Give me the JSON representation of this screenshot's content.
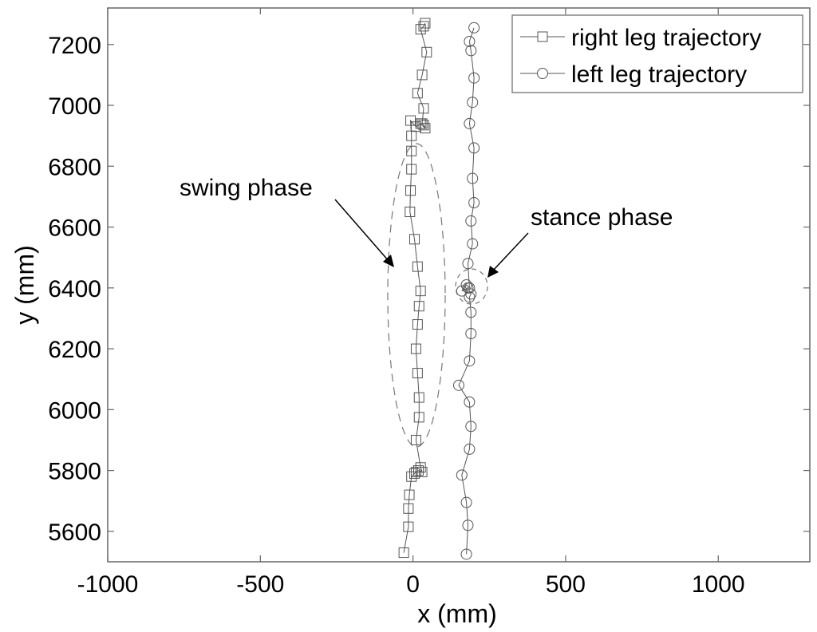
{
  "chart_data": {
    "type": "line",
    "title": "",
    "xlabel": "x (mm)",
    "ylabel": "y (mm)",
    "xlim": [
      -1000,
      1300
    ],
    "ylim": [
      5500,
      7320
    ],
    "xticks": [
      -1000,
      -500,
      0,
      500,
      1000
    ],
    "xtick_labels": [
      "-1000",
      "-500",
      "0",
      "500",
      "1000"
    ],
    "yticks": [
      5600,
      5800,
      6000,
      6200,
      6400,
      6600,
      6800,
      7000,
      7200
    ],
    "ytick_labels": [
      "5600",
      "5800",
      "6000",
      "6200",
      "6400",
      "6600",
      "6800",
      "7000",
      "7200"
    ],
    "grid": false,
    "legend_position": "top-right",
    "series": [
      {
        "name": "right leg trajectory",
        "marker": "square",
        "x": [
          -30,
          -15,
          -15,
          -12,
          -5,
          5,
          10,
          18,
          30,
          25,
          10,
          20,
          20,
          15,
          10,
          15,
          20,
          25,
          15,
          5,
          -10,
          -8,
          -5,
          -5,
          -5,
          -8,
          10,
          25,
          40,
          35,
          30,
          35,
          15,
          30,
          45,
          25,
          35,
          40
        ],
        "y": [
          5530,
          5615,
          5675,
          5720,
          5780,
          5790,
          5795,
          5800,
          5795,
          5810,
          5900,
          5975,
          6040,
          6120,
          6200,
          6280,
          6340,
          6390,
          6470,
          6560,
          6650,
          6720,
          6790,
          6850,
          6900,
          6950,
          6930,
          6940,
          6925,
          6935,
          6940,
          6990,
          7040,
          7100,
          7175,
          7250,
          7260,
          7270
        ],
        "color": "#555555"
      },
      {
        "name": "left leg trajectory",
        "marker": "circle",
        "x": [
          175,
          180,
          175,
          160,
          185,
          190,
          185,
          150,
          185,
          190,
          190,
          185,
          190,
          180,
          160,
          175,
          185,
          180,
          195,
          190,
          200,
          195,
          200,
          185,
          195,
          200,
          190,
          185,
          200
        ],
        "y": [
          5525,
          5620,
          5695,
          5785,
          5870,
          5945,
          6025,
          6080,
          6160,
          6250,
          6320,
          6370,
          6380,
          6400,
          6390,
          6410,
          6400,
          6480,
          6545,
          6620,
          6680,
          6760,
          6860,
          6940,
          7010,
          7090,
          7180,
          7210,
          7255
        ],
        "color": "#555555"
      }
    ],
    "annotations": [
      "swing phase",
      "stance phase"
    ]
  }
}
